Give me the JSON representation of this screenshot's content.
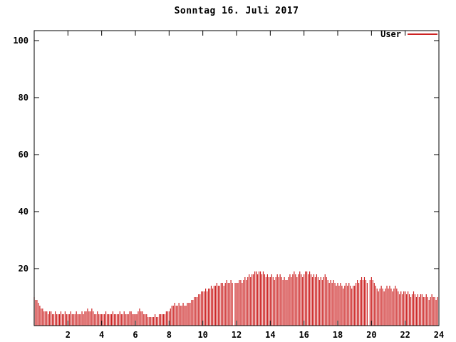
{
  "background": "#ffffff",
  "chart_data": {
    "type": "bar",
    "title": "Sonntag 16. Juli 2017",
    "xlabel": "",
    "ylabel": "",
    "xlim": [
      0,
      24
    ],
    "ylim": [
      0,
      103.5
    ],
    "xticks": [
      2,
      4,
      6,
      8,
      10,
      12,
      14,
      16,
      18,
      20,
      22,
      24
    ],
    "yticks": [
      20,
      40,
      60,
      80,
      100
    ],
    "grid": false,
    "legend_position": "top-right",
    "bar_style": "impulses",
    "points_per_hour": 12,
    "series": [
      {
        "name": "User",
        "color": "#cc2222",
        "values": [
          10,
          9,
          9,
          8,
          7,
          6,
          6,
          5,
          5,
          5,
          4,
          5,
          5,
          4,
          4,
          5,
          4,
          4,
          4,
          5,
          4,
          4,
          5,
          4,
          4,
          4,
          5,
          4,
          4,
          4,
          5,
          4,
          4,
          4,
          5,
          4,
          5,
          5,
          6,
          5,
          5,
          6,
          5,
          4,
          4,
          5,
          4,
          4,
          4,
          4,
          4,
          5,
          4,
          4,
          4,
          4,
          5,
          4,
          4,
          4,
          4,
          5,
          4,
          4,
          5,
          4,
          4,
          4,
          5,
          5,
          4,
          4,
          4,
          4,
          5,
          6,
          5,
          5,
          4,
          4,
          4,
          3,
          3,
          3,
          3,
          3,
          4,
          3,
          3,
          4,
          4,
          4,
          4,
          4,
          5,
          5,
          5,
          6,
          7,
          7,
          8,
          7,
          7,
          8,
          7,
          7,
          8,
          7,
          7,
          8,
          8,
          8,
          9,
          9,
          10,
          10,
          10,
          11,
          11,
          12,
          12,
          12,
          13,
          12,
          13,
          13,
          14,
          13,
          14,
          14,
          15,
          14,
          14,
          15,
          15,
          14,
          15,
          16,
          15,
          15,
          16,
          15,
          0,
          15,
          15,
          15,
          16,
          16,
          15,
          16,
          17,
          16,
          17,
          18,
          17,
          18,
          18,
          19,
          19,
          18,
          19,
          19,
          18,
          19,
          18,
          17,
          18,
          17,
          17,
          18,
          17,
          16,
          17,
          18,
          17,
          18,
          17,
          16,
          17,
          16,
          16,
          17,
          18,
          17,
          18,
          19,
          18,
          17,
          18,
          19,
          18,
          17,
          18,
          19,
          19,
          18,
          19,
          18,
          17,
          18,
          17,
          18,
          17,
          16,
          17,
          16,
          17,
          18,
          17,
          16,
          15,
          16,
          15,
          16,
          15,
          14,
          15,
          14,
          15,
          14,
          13,
          14,
          15,
          14,
          15,
          14,
          13,
          14,
          14,
          15,
          16,
          15,
          16,
          17,
          16,
          17,
          16,
          15,
          0,
          16,
          17,
          16,
          15,
          14,
          13,
          12,
          13,
          14,
          13,
          12,
          13,
          14,
          13,
          14,
          13,
          12,
          13,
          14,
          13,
          12,
          11,
          12,
          11,
          12,
          12,
          11,
          12,
          11,
          10,
          11,
          12,
          11,
          10,
          11,
          10,
          11,
          11,
          10,
          10,
          11,
          10,
          9,
          10,
          11,
          10,
          10,
          9,
          10
        ]
      }
    ]
  }
}
